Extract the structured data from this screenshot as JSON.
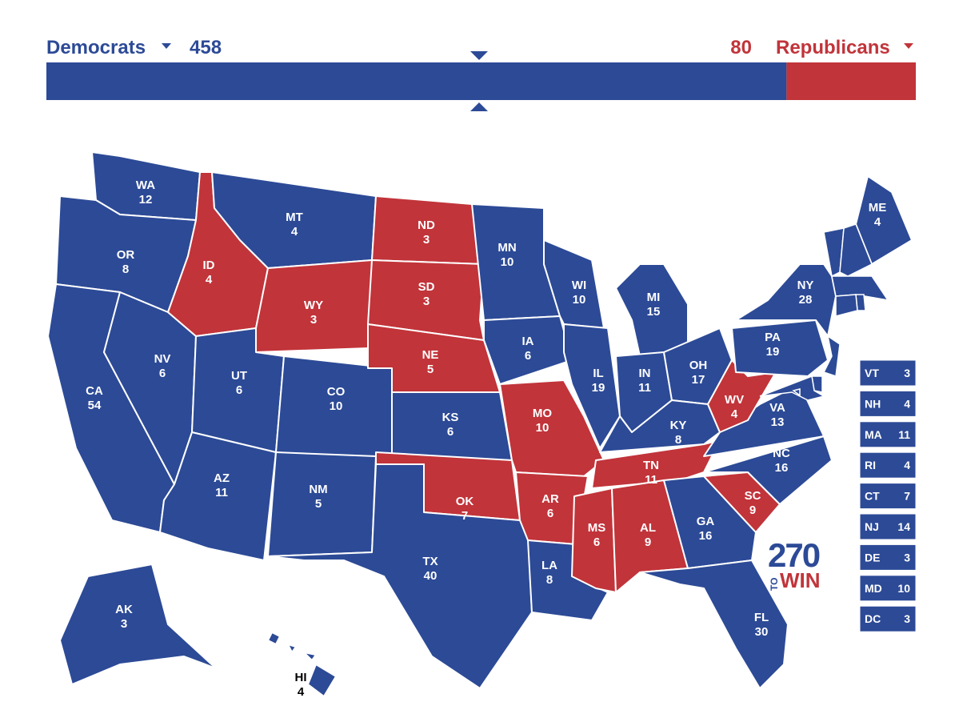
{
  "header": {
    "dem_label": "Democrats",
    "dem_votes": 458,
    "dem_color": "#2c4a96",
    "rep_votes": 80,
    "rep_label": "Republicans",
    "rep_color": "#c1343a"
  },
  "states": [
    {
      "abbr": "WA",
      "votes": 12,
      "color": "#2c4a96"
    },
    {
      "abbr": "OR",
      "votes": 8,
      "color": "#2c4a96"
    },
    {
      "abbr": "CA",
      "votes": 54,
      "color": "#2c4a96"
    },
    {
      "abbr": "NV",
      "votes": 6,
      "color": "#2c4a96"
    },
    {
      "abbr": "ID",
      "votes": 4,
      "color": "#c1343a"
    },
    {
      "abbr": "MT",
      "votes": 4,
      "color": "#2c4a96"
    },
    {
      "abbr": "WY",
      "votes": 3,
      "color": "#c1343a"
    },
    {
      "abbr": "UT",
      "votes": 6,
      "color": "#2c4a96"
    },
    {
      "abbr": "AZ",
      "votes": 11,
      "color": "#2c4a96"
    },
    {
      "abbr": "CO",
      "votes": 10,
      "color": "#2c4a96"
    },
    {
      "abbr": "NM",
      "votes": 5,
      "color": "#2c4a96"
    },
    {
      "abbr": "ND",
      "votes": 3,
      "color": "#c1343a"
    },
    {
      "abbr": "SD",
      "votes": 3,
      "color": "#c1343a"
    },
    {
      "abbr": "NE",
      "votes": 5,
      "color": "#c1343a"
    },
    {
      "abbr": "KS",
      "votes": 6,
      "color": "#2c4a96"
    },
    {
      "abbr": "OK",
      "votes": 7,
      "color": "#c1343a"
    },
    {
      "abbr": "TX",
      "votes": 40,
      "color": "#2c4a96"
    },
    {
      "abbr": "MN",
      "votes": 10,
      "color": "#2c4a96"
    },
    {
      "abbr": "IA",
      "votes": 6,
      "color": "#2c4a96"
    },
    {
      "abbr": "MO",
      "votes": 10,
      "color": "#c1343a"
    },
    {
      "abbr": "AR",
      "votes": 6,
      "color": "#c1343a"
    },
    {
      "abbr": "LA",
      "votes": 8,
      "color": "#2c4a96"
    },
    {
      "abbr": "WI",
      "votes": 10,
      "color": "#2c4a96"
    },
    {
      "abbr": "IL",
      "votes": 19,
      "color": "#2c4a96"
    },
    {
      "abbr": "MI",
      "votes": 15,
      "color": "#2c4a96"
    },
    {
      "abbr": "IN",
      "votes": 11,
      "color": "#2c4a96"
    },
    {
      "abbr": "OH",
      "votes": 17,
      "color": "#2c4a96"
    },
    {
      "abbr": "KY",
      "votes": 8,
      "color": "#2c4a96"
    },
    {
      "abbr": "TN",
      "votes": 11,
      "color": "#c1343a"
    },
    {
      "abbr": "MS",
      "votes": 6,
      "color": "#c1343a"
    },
    {
      "abbr": "AL",
      "votes": 9,
      "color": "#c1343a"
    },
    {
      "abbr": "GA",
      "votes": 16,
      "color": "#2c4a96"
    },
    {
      "abbr": "FL",
      "votes": 30,
      "color": "#2c4a96"
    },
    {
      "abbr": "SC",
      "votes": 9,
      "color": "#c1343a"
    },
    {
      "abbr": "NC",
      "votes": 16,
      "color": "#2c4a96"
    },
    {
      "abbr": "VA",
      "votes": 13,
      "color": "#2c4a96"
    },
    {
      "abbr": "WV",
      "votes": 4,
      "color": "#c1343a"
    },
    {
      "abbr": "PA",
      "votes": 19,
      "color": "#2c4a96"
    },
    {
      "abbr": "NY",
      "votes": 28,
      "color": "#2c4a96"
    },
    {
      "abbr": "ME",
      "votes": 4,
      "color": "#2c4a96"
    },
    {
      "abbr": "AK",
      "votes": 3,
      "color": "#2c4a96"
    },
    {
      "abbr": "HI",
      "votes": 4,
      "color": "#2c4a96",
      "label_color": "#000000"
    }
  ],
  "sidebar": [
    {
      "abbr": "VT",
      "votes": 3,
      "color": "#2c4a96"
    },
    {
      "abbr": "NH",
      "votes": 4,
      "color": "#2c4a96"
    },
    {
      "abbr": "MA",
      "votes": 11,
      "color": "#2c4a96"
    },
    {
      "abbr": "RI",
      "votes": 4,
      "color": "#2c4a96"
    },
    {
      "abbr": "CT",
      "votes": 7,
      "color": "#2c4a96"
    },
    {
      "abbr": "NJ",
      "votes": 14,
      "color": "#2c4a96"
    },
    {
      "abbr": "DE",
      "votes": 3,
      "color": "#2c4a96"
    },
    {
      "abbr": "MD",
      "votes": 10,
      "color": "#2c4a96"
    },
    {
      "abbr": "DC",
      "votes": 3,
      "color": "#2c4a96"
    }
  ],
  "logo": {
    "number": "270",
    "to": "TO",
    "win": "WIN"
  }
}
